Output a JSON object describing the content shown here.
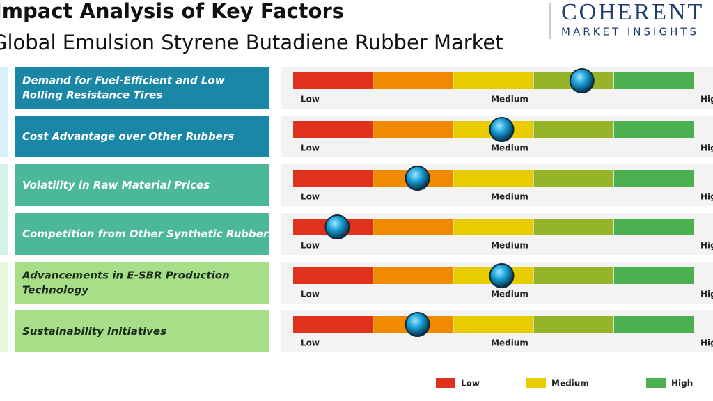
{
  "title": "Impact Analysis of Key Factors",
  "subtitle": "Global Emulsion Styrene Butadiene Rubber Market",
  "logo": {
    "name": "COHERENT",
    "tagline": "MARKET INSIGHTS"
  },
  "scale": {
    "labels": [
      "Low",
      "Medium",
      "High"
    ],
    "range": [
      0,
      5
    ],
    "segment_colors": [
      "#e0301e",
      "#f08a00",
      "#e8cc00",
      "#96b428",
      "#4caf50"
    ]
  },
  "factors": [
    {
      "label": "Demand for Fuel-Efficient and Low Rolling Resistance Tires",
      "impact": 3.6,
      "color": "#1a87a6"
    },
    {
      "label": "Cost Advantage over Other Rubbers",
      "impact": 2.6,
      "color": "#1a87a6"
    },
    {
      "label": "Volatility in Raw Material Prices",
      "impact": 1.55,
      "color": "#4bb89a"
    },
    {
      "label": "Competition from Other Synthetic Rubbers",
      "impact": 0.55,
      "color": "#4bb89a"
    },
    {
      "label": "Advancements in E-SBR Production Technology",
      "impact": 2.6,
      "color": "#a6df88"
    },
    {
      "label": "Sustainability Initiatives",
      "impact": 1.55,
      "color": "#a6df88"
    }
  ],
  "legend": [
    "Low",
    "Medium",
    "High"
  ]
}
